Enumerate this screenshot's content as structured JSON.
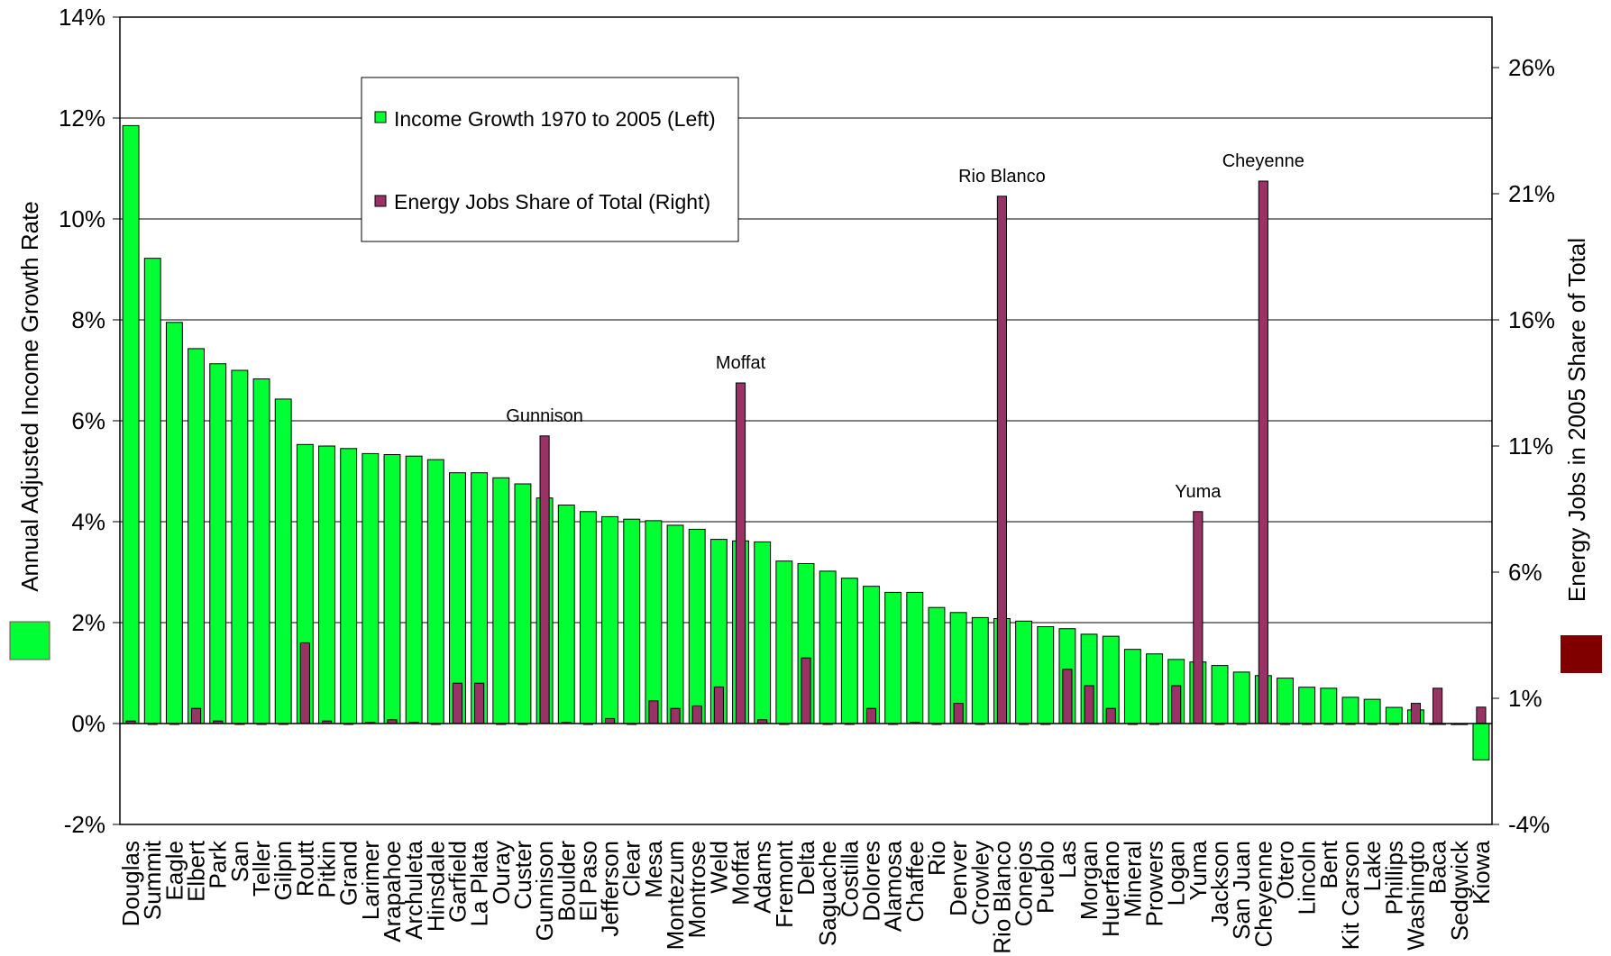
{
  "chart_data": {
    "type": "bar",
    "title": "",
    "categories": [
      "Douglas",
      "Summit",
      "Eagle",
      "Elbert",
      "Park",
      "San",
      "Teller",
      "Gilpin",
      "Routt",
      "Pitkin",
      "Grand",
      "Larimer",
      "Arapahoe",
      "Archuleta",
      "Hinsdale",
      "Garfield",
      "La Plata",
      "Ouray",
      "Custer",
      "Gunnison",
      "Boulder",
      "El Paso",
      "Jefferson",
      "Clear",
      "Mesa",
      "Montezum",
      "Montrose",
      "Weld",
      "Moffat",
      "Adams",
      "Fremont",
      "Delta",
      "Saguache",
      "Costilla",
      "Dolores",
      "Alamosa",
      "Chaffee",
      "Rio",
      "Denver",
      "Crowley",
      "Rio Blanco",
      "Conejos",
      "Pueblo",
      "Las",
      "Morgan",
      "Huerfano",
      "Mineral",
      "Prowers",
      "Logan",
      "Yuma",
      "Jackson",
      "San Juan",
      "Cheyenne",
      "Otero",
      "Lincoln",
      "Bent",
      "Kit Carson",
      "Lake",
      "Phillips",
      "Washingto",
      "Baca",
      "Sedgwick",
      "Kiowa"
    ],
    "series": [
      {
        "name": "Income Growth 1970 to 2005 (Left)",
        "axis": "left",
        "color": "#00ff33",
        "values": [
          11.85,
          9.22,
          7.95,
          7.43,
          7.13,
          7.0,
          6.83,
          6.43,
          5.53,
          5.5,
          5.45,
          5.35,
          5.33,
          5.3,
          5.23,
          4.97,
          4.97,
          4.87,
          4.75,
          4.47,
          4.33,
          4.2,
          4.1,
          4.05,
          4.02,
          3.93,
          3.85,
          3.65,
          3.62,
          3.6,
          3.22,
          3.17,
          3.02,
          2.88,
          2.72,
          2.6,
          2.6,
          2.3,
          2.2,
          2.1,
          2.08,
          2.03,
          1.92,
          1.88,
          1.77,
          1.73,
          1.47,
          1.38,
          1.27,
          1.22,
          1.15,
          1.02,
          0.95,
          0.9,
          0.72,
          0.7,
          0.52,
          0.48,
          0.32,
          0.27,
          0.0,
          -0.02,
          -0.72
        ]
      },
      {
        "name": "Energy Jobs Share of Total (Right)",
        "axis": "right",
        "color": "#993366",
        "values": [
          0.1,
          0.0,
          0.0,
          0.6,
          0.1,
          0.0,
          0.0,
          0.0,
          3.2,
          0.1,
          0.0,
          0.05,
          0.15,
          0.05,
          0.0,
          1.6,
          1.6,
          0.0,
          0.0,
          11.4,
          0.05,
          0.0,
          0.2,
          0.0,
          0.9,
          0.6,
          0.7,
          1.45,
          13.5,
          0.15,
          0.0,
          2.6,
          0.0,
          0.0,
          0.6,
          0.0,
          0.05,
          0.0,
          0.8,
          0.0,
          20.9,
          0.0,
          0.0,
          2.15,
          1.5,
          0.6,
          0.0,
          0.0,
          1.5,
          8.4,
          0.0,
          0.0,
          21.5,
          0.0,
          0.0,
          0.0,
          0.0,
          0.0,
          0.0,
          0.8,
          1.4,
          0.0,
          0.65
        ]
      }
    ],
    "y_left": {
      "label": "Annual Adjusted Income Growth Rate",
      "ylim": [
        -2,
        14
      ],
      "ticks": [
        -2,
        0,
        2,
        4,
        6,
        8,
        10,
        12,
        14
      ],
      "tick_labels": [
        "-2%",
        "0%",
        "2%",
        "4%",
        "6%",
        "8%",
        "10%",
        "12%",
        "14%"
      ]
    },
    "y_right": {
      "label": "Energy Jobs in 2005 Share of Total",
      "ylim": [
        -4,
        28
      ],
      "ticks": [
        -4,
        1,
        6,
        11,
        16,
        21,
        26
      ],
      "tick_labels": [
        "-4%",
        "1%",
        "6%",
        "11%",
        "16%",
        "21%",
        "26%"
      ]
    },
    "annotations": [
      {
        "text": "Gunnison",
        "category": "Gunnison"
      },
      {
        "text": "Moffat",
        "category": "Moffat"
      },
      {
        "text": "Rio Blanco",
        "category": "Rio Blanco"
      },
      {
        "text": "Yuma",
        "category": "Yuma"
      },
      {
        "text": "Cheyenne",
        "category": "Cheyenne"
      }
    ],
    "legend_placement": "top-left-inside",
    "grid": true,
    "left_swatch_color": "#00ff33",
    "right_swatch_color": "#800000"
  }
}
